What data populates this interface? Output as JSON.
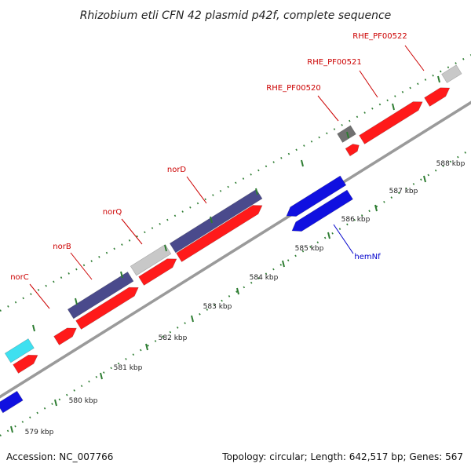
{
  "title": "Rhizobium etli CFN 42 plasmid p42f, complete sequence",
  "footer": {
    "accession": "Accession: NC_007766",
    "summary": "Topology: circular; Length: 642,517 bp; Genes: 567"
  },
  "ruler": {
    "ticks": [
      "579 kbp",
      "580 kbp",
      "581 kbp",
      "582 kbp",
      "583 kbp",
      "584 kbp",
      "585 kbp",
      "586 kbp",
      "587 kbp",
      "588 kbp"
    ]
  },
  "gene_labels": {
    "norC": "norC",
    "norB": "norB",
    "norQ": "norQ",
    "norD": "norD",
    "rhe_pf00520": "RHE_PF00520",
    "rhe_pf00521": "RHE_PF00521",
    "rhe_pf00522": "RHE_PF00522",
    "hemNf": "hemNf"
  },
  "colors": {
    "backbone": "#9a9a9a",
    "tick": "#2e7d32",
    "cds": "#ff1a1a",
    "gene_navy": "#4a4a8c",
    "gene_gray": "#c8c8c8",
    "gene_dark": "#707070",
    "gene_cyan": "#3ee0f0",
    "gene_blue": "#1010e0",
    "label_red": "#cc0000",
    "label_blue": "#0000cc"
  }
}
